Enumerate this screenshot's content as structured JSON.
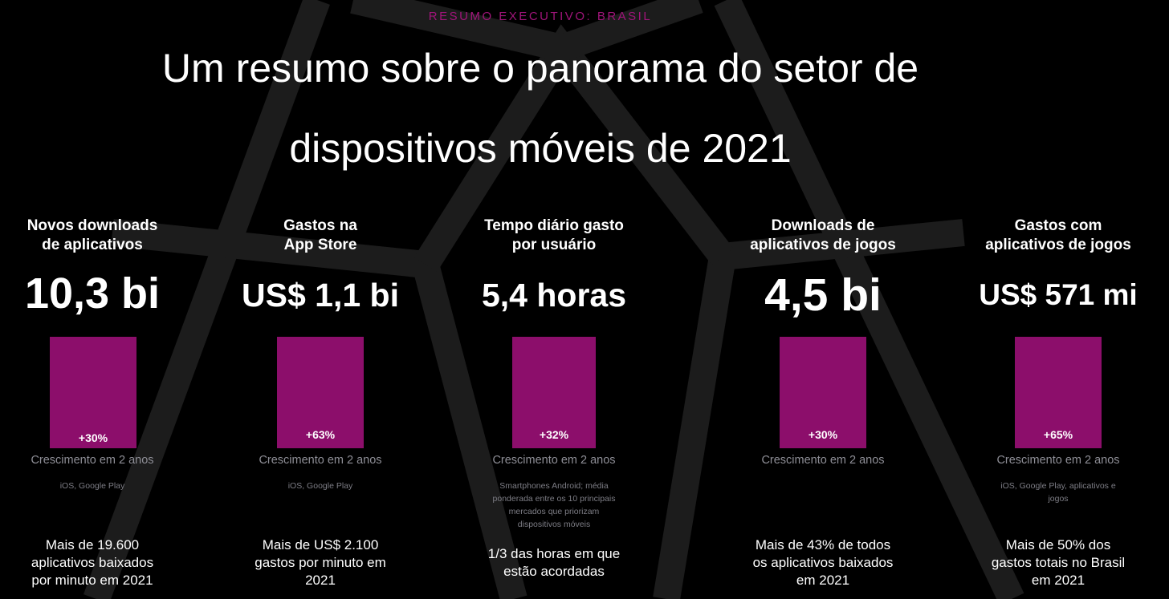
{
  "header": {
    "kicker": "RESUMO EXECUTIVO: BRASIL",
    "title_line1": "Um resumo sobre o panorama do setor de",
    "title_line2": "dispositivos móveis de 2021"
  },
  "colors": {
    "background": "#000000",
    "accent": "#8c0e6b",
    "kicker": "#a0157a",
    "muted_text": "#8e8e96"
  },
  "metrics": [
    {
      "head_line1": "Novos downloads",
      "head_line2": "de aplicativos",
      "value": "10,3 bi",
      "growth": "+30%",
      "growth_label": "Crescimento em 2 anos",
      "source": "iOS, Google Play",
      "note_lines": [
        "Mais de 19.600",
        "aplicativos baixados",
        "por minuto em 2021"
      ]
    },
    {
      "head_line1": "Gastos na",
      "head_line2": "App Store",
      "value": "US$ 1,1 bi",
      "growth": "+63%",
      "growth_label": "Crescimento em 2 anos",
      "source": "iOS, Google Play",
      "note_lines": [
        "Mais de US$ 2.100",
        "gastos por minuto em",
        "2021"
      ]
    },
    {
      "head_line1": "Tempo diário gasto",
      "head_line2": "por usuário",
      "value": "5,4 horas",
      "growth": "+32%",
      "growth_label": "Crescimento em 2 anos",
      "source_lines": [
        "Smartphones Android; média",
        "ponderada entre os 10 principais",
        "mercados que priorizam",
        "dispositivos móveis"
      ],
      "note_lines": [
        "1/3 das horas em que",
        "estão acordadas"
      ]
    },
    {
      "head_line1": "Downloads de",
      "head_line2": "aplicativos de jogos",
      "value": "4,5 bi",
      "growth": "+30%",
      "growth_label": "Crescimento em 2 anos",
      "note_lines": [
        "Mais de 43% de todos",
        "os aplicativos baixados",
        "em 2021"
      ]
    },
    {
      "head_line1": "Gastos com",
      "head_line2": "aplicativos de jogos",
      "value": "US$ 571 mi",
      "growth": "+65%",
      "growth_label": "Crescimento em 2 anos",
      "source_lines": [
        "iOS, Google Play, aplicativos e",
        "jogos"
      ],
      "note_lines": [
        "Mais de 50% dos",
        "gastos totais no Brasil",
        "em 2021"
      ]
    }
  ]
}
